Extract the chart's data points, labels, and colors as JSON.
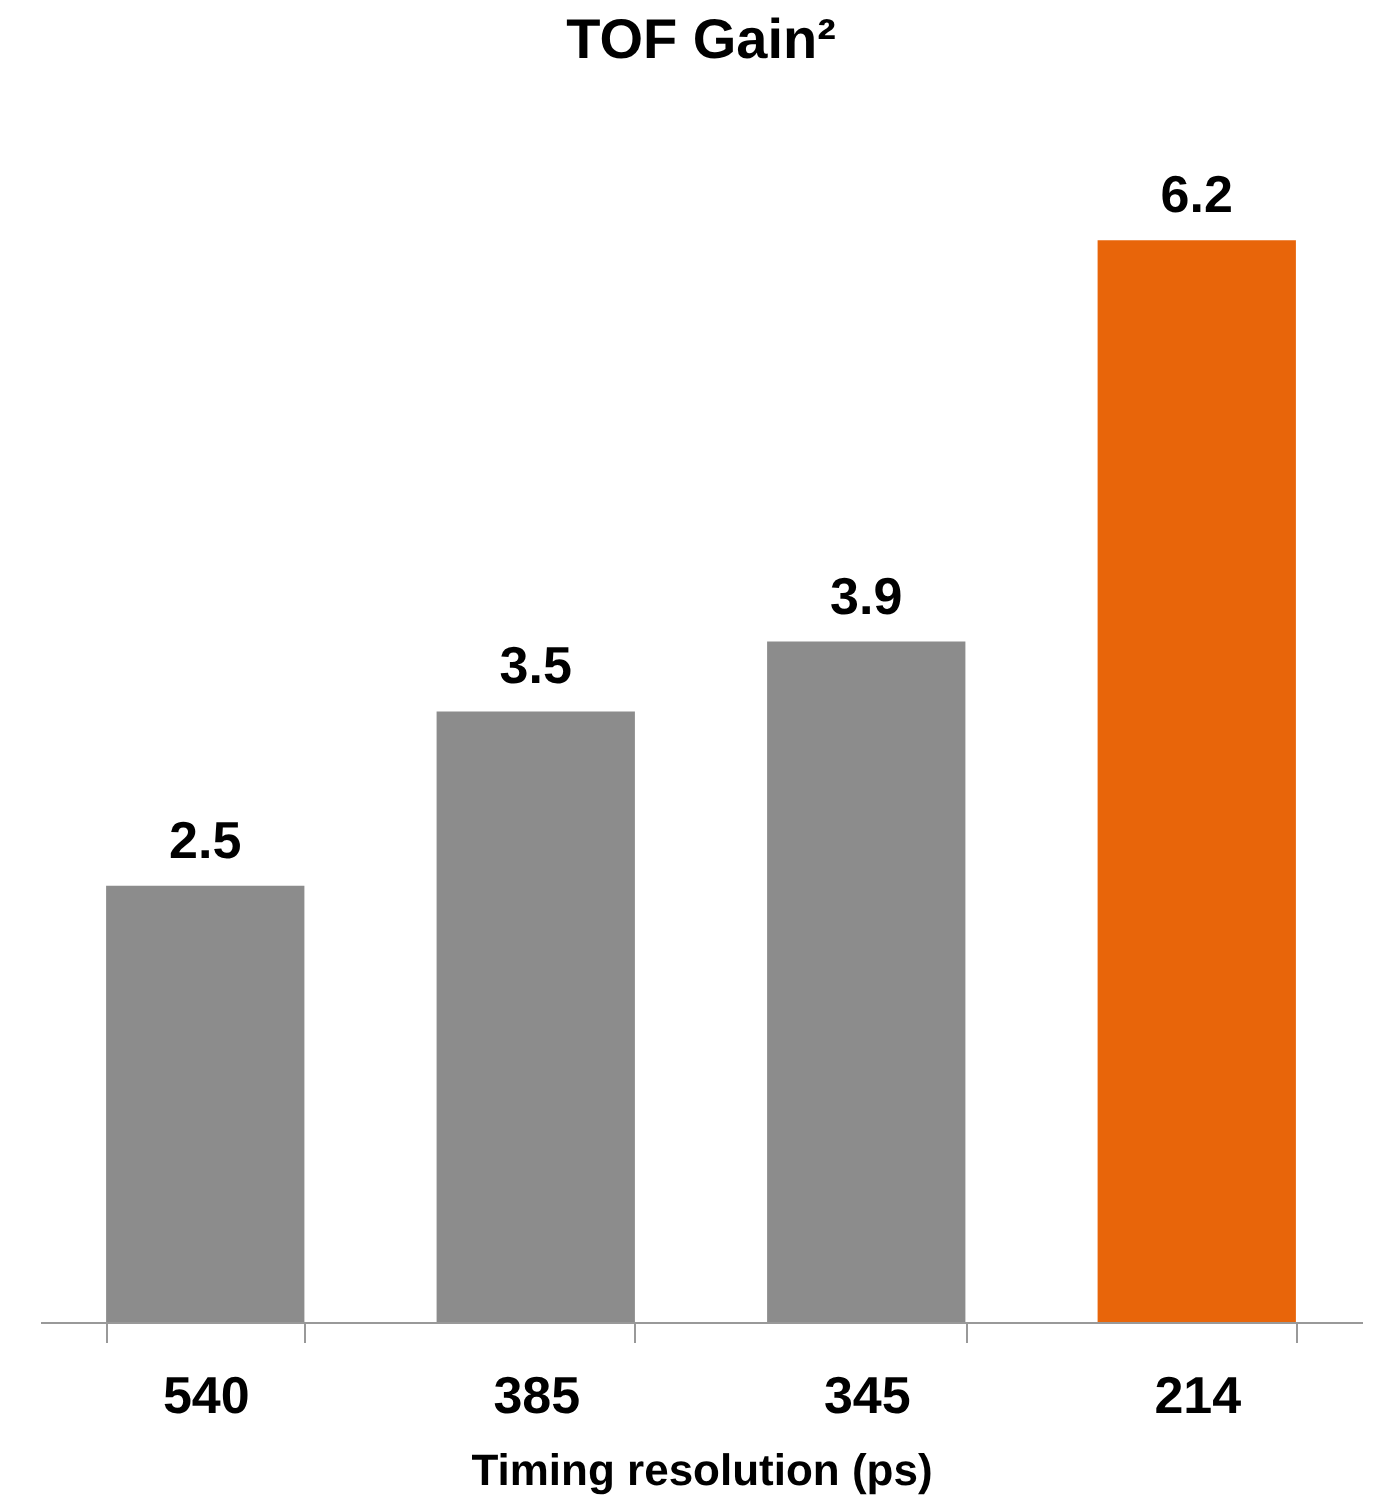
{
  "chart_data": {
    "type": "bar",
    "title": "TOF Gain²",
    "xlabel": "Timing resolution (ps)",
    "categories": [
      "540",
      "385",
      "345",
      "214"
    ],
    "values": [
      2.5,
      3.5,
      3.9,
      6.2
    ],
    "colors": [
      "#8c8c8c",
      "#8c8c8c",
      "#8c8c8c",
      "#e8650a"
    ],
    "data_labels": true
  }
}
